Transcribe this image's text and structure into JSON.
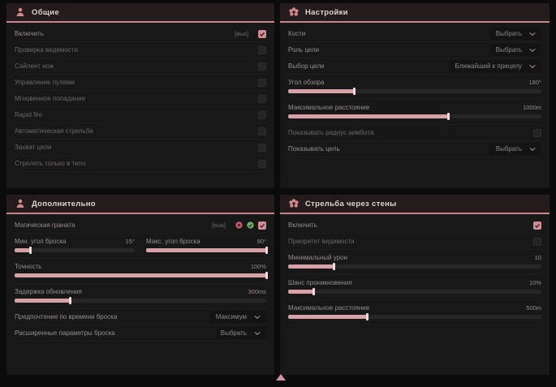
{
  "colors": {
    "accent": "#d18b92",
    "slider_fill": "#d7a2a7",
    "green_badge": "#72b06a",
    "red_badge": "#c9626e",
    "header_line": "#c4868c"
  },
  "footer": {
    "arrow_icon": "triangle-up"
  },
  "panels": [
    {
      "id": "general",
      "title": "Общие",
      "icon": "person-icon",
      "rows": [
        {
          "type": "checkbox",
          "label": "Включить",
          "prefix": "[вык]",
          "checked": true,
          "dim": false
        },
        {
          "type": "checkbox",
          "label": "Проверка видимости",
          "checked": false,
          "dim": true
        },
        {
          "type": "checkbox",
          "label": "Сайлент нож",
          "checked": false,
          "dim": true
        },
        {
          "type": "checkbox",
          "label": "Управление пулями",
          "checked": false,
          "dim": true
        },
        {
          "type": "checkbox",
          "label": "Мгновенное попадание",
          "checked": false,
          "dim": true
        },
        {
          "type": "checkbox",
          "label": "Rapid fire",
          "checked": false,
          "dim": true
        },
        {
          "type": "checkbox",
          "label": "Автоматическая стрельба",
          "checked": false,
          "dim": true
        },
        {
          "type": "checkbox",
          "label": "Захват цели",
          "checked": false,
          "dim": true
        },
        {
          "type": "checkbox",
          "label": "Стрелять только в тело",
          "checked": false,
          "dim": true
        }
      ]
    },
    {
      "id": "settings",
      "title": "Настройки",
      "icon": "flower-icon",
      "rows": [
        {
          "type": "dropdown",
          "label": "Кости",
          "value": "Выбрать"
        },
        {
          "type": "dropdown",
          "label": "Роль цели",
          "value": "Выбрать"
        },
        {
          "type": "dropdown",
          "label": "Выбор цели",
          "value": "Ближайший к прицелу"
        },
        {
          "type": "slider",
          "label": "Угол обзора",
          "value": "180°",
          "fill": 26
        },
        {
          "type": "slider",
          "label": "Максимальное расстояние",
          "value": "1000m",
          "fill": 63
        },
        {
          "type": "checkbox",
          "label": "Показывать радиус аимбота",
          "checked": false,
          "dim": true
        },
        {
          "type": "dropdown",
          "label": "Показывать цель",
          "value": "Выбрать"
        }
      ]
    },
    {
      "id": "additional",
      "title": "Дополнительно",
      "icon": "person-icon",
      "rows": [
        {
          "type": "feature",
          "label": "Магическая граната",
          "prefix": "[вык]",
          "icons": [
            "red-badge-icon",
            "green-badge-icon"
          ],
          "checked": true,
          "dim": false
        },
        {
          "type": "slider_pair",
          "items": [
            {
              "label": "Мин. угол броска",
              "value": "15°",
              "fill": 13
            },
            {
              "label": "Макс. угол броска",
              "value": "90°",
              "fill": 100
            }
          ]
        },
        {
          "type": "slider",
          "label": "Точность",
          "value": "100%",
          "fill": 100
        },
        {
          "type": "slider",
          "label": "Задержка обновления",
          "value": "300ms",
          "fill": 22
        },
        {
          "type": "dropdown",
          "label": "Предпочтение по времени броска",
          "value": "Максимум"
        },
        {
          "type": "dropdown",
          "label": "Расширенные параметры броска",
          "value": "Выбрать"
        }
      ]
    },
    {
      "id": "wallshot",
      "title": "Стрельба через стены",
      "icon": "flower-icon",
      "rows": [
        {
          "type": "checkbox",
          "label": "Включить",
          "checked": true,
          "dim": false
        },
        {
          "type": "checkbox",
          "label": "Приоритет видимости",
          "checked": false,
          "dim": true
        },
        {
          "type": "slider",
          "label": "Минимальный урон",
          "value": "10",
          "fill": 18
        },
        {
          "type": "slider",
          "label": "Шанс проникновения",
          "value": "10%",
          "fill": 10
        },
        {
          "type": "slider",
          "label": "Максимальное расстояние",
          "value": "500m",
          "fill": 31
        }
      ]
    }
  ]
}
